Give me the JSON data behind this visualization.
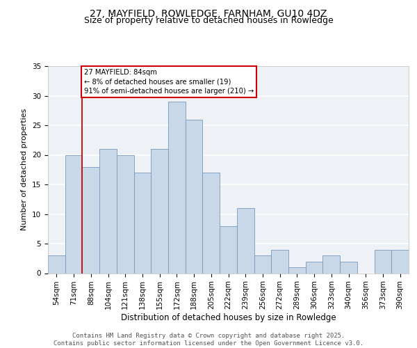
{
  "title": "27, MAYFIELD, ROWLEDGE, FARNHAM, GU10 4DZ",
  "subtitle": "Size of property relative to detached houses in Rowledge",
  "xlabel": "Distribution of detached houses by size in Rowledge",
  "ylabel": "Number of detached properties",
  "categories": [
    "54sqm",
    "71sqm",
    "88sqm",
    "104sqm",
    "121sqm",
    "138sqm",
    "155sqm",
    "172sqm",
    "188sqm",
    "205sqm",
    "222sqm",
    "239sqm",
    "256sqm",
    "272sqm",
    "289sqm",
    "306sqm",
    "323sqm",
    "340sqm",
    "356sqm",
    "373sqm",
    "390sqm"
  ],
  "values": [
    3,
    20,
    18,
    21,
    20,
    17,
    21,
    29,
    26,
    17,
    8,
    11,
    3,
    4,
    1,
    2,
    3,
    2,
    0,
    4,
    4
  ],
  "bar_color": "#c8d8e8",
  "bar_edge_color": "#7799bb",
  "property_label": "27 MAYFIELD: 84sqm",
  "annotation_line1": "← 8% of detached houses are smaller (19)",
  "annotation_line2": "91% of semi-detached houses are larger (210) →",
  "annotation_box_facecolor": "#ffffff",
  "annotation_box_edgecolor": "#cc0000",
  "vline_color": "#cc0000",
  "ylim": [
    0,
    35
  ],
  "yticks": [
    0,
    5,
    10,
    15,
    20,
    25,
    30,
    35
  ],
  "background_color": "#eef2f7",
  "grid_color": "#ffffff",
  "footer_line1": "Contains HM Land Registry data © Crown copyright and database right 2025.",
  "footer_line2": "Contains public sector information licensed under the Open Government Licence v3.0.",
  "title_fontsize": 10,
  "subtitle_fontsize": 9,
  "axis_label_fontsize": 8,
  "tick_fontsize": 7.5,
  "footer_fontsize": 6.5
}
